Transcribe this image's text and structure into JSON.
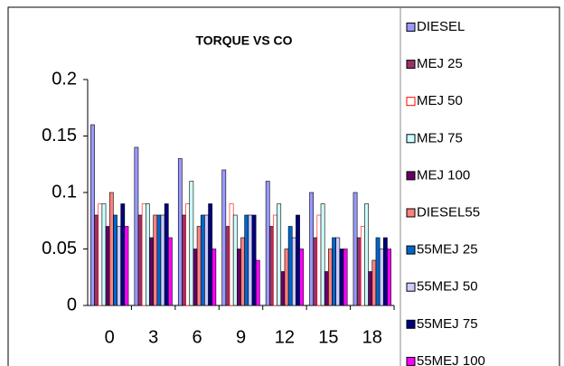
{
  "chart_data": {
    "type": "bar",
    "title": "TORQUE VS CO",
    "categories": [
      "0",
      "3",
      "6",
      "9",
      "12",
      "15",
      "18"
    ],
    "series": [
      {
        "name": "DIESEL",
        "color": "#9999ff",
        "values": [
          0.16,
          0.14,
          0.13,
          0.12,
          0.11,
          0.1,
          0.1
        ]
      },
      {
        "name": "MEJ 25",
        "color": "#993366",
        "values": [
          0.08,
          0.08,
          0.08,
          0.07,
          0.07,
          0.06,
          0.06
        ]
      },
      {
        "name": "MEJ 50",
        "color": "#ffffff",
        "values": [
          0.09,
          0.09,
          0.09,
          0.09,
          0.08,
          0.08,
          0.07
        ]
      },
      {
        "name": "MEJ 75",
        "color": "#ccffff",
        "values": [
          0.09,
          0.09,
          0.11,
          0.08,
          0.09,
          0.09,
          0.09
        ]
      },
      {
        "name": "MEJ 100",
        "color": "#660066",
        "values": [
          0.07,
          0.06,
          0.05,
          0.05,
          0.03,
          0.03,
          0.03
        ]
      },
      {
        "name": "DIESEL55",
        "color": "#ff8080",
        "values": [
          0.1,
          0.08,
          0.07,
          0.06,
          0.05,
          0.05,
          0.04
        ]
      },
      {
        "name": "55MEJ 25",
        "color": "#0066cc",
        "values": [
          0.08,
          0.08,
          0.08,
          0.08,
          0.07,
          0.06,
          0.06
        ]
      },
      {
        "name": "55MEJ 50",
        "color": "#ccccff",
        "values": [
          0.07,
          0.08,
          0.08,
          0.08,
          0.06,
          0.06,
          0.05
        ]
      },
      {
        "name": "55MEJ 75",
        "color": "#000080",
        "values": [
          0.09,
          0.09,
          0.09,
          0.08,
          0.08,
          0.05,
          0.06
        ]
      },
      {
        "name": "55MEJ 100",
        "color": "#ff00ff",
        "values": [
          0.07,
          0.06,
          0.05,
          0.04,
          0.05,
          0.05,
          0.05
        ]
      }
    ],
    "ylim": [
      0,
      0.2
    ],
    "yticks": [
      0,
      0.05,
      0.1,
      0.15,
      0.2
    ],
    "legend": "right"
  }
}
